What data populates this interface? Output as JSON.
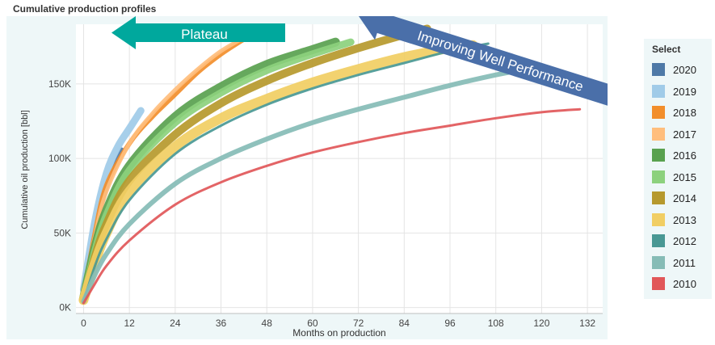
{
  "chart_data": {
    "type": "line",
    "title": "Cumulative production profiles",
    "xlabel": "Months on production",
    "ylabel": "Cumulative oil production [bbl]",
    "xlim": [
      -2,
      136
    ],
    "ylim": [
      -4,
      190
    ],
    "x_ticks": [
      0,
      12,
      24,
      36,
      48,
      60,
      72,
      84,
      96,
      108,
      120,
      132
    ],
    "x_tick_labels": [
      "0",
      "12",
      "24",
      "36",
      "48",
      "60",
      "72",
      "84",
      "96",
      "108",
      "120",
      "132"
    ],
    "y_ticks": [
      0,
      50,
      100,
      150
    ],
    "y_tick_labels": [
      "0K",
      "50K",
      "100K",
      "150K"
    ],
    "y_unit": "thousand bbl",
    "grid": true,
    "legend": {
      "title": "Select",
      "position": "right"
    },
    "series": [
      {
        "name": "2020",
        "color": "#4e79a7",
        "width": 5,
        "points": [
          [
            0,
            10
          ],
          [
            3,
            50
          ],
          [
            6,
            80
          ],
          [
            9,
            100
          ],
          [
            10,
            106
          ]
        ]
      },
      {
        "name": "2019",
        "color": "#a0cbe8",
        "width": 9,
        "points": [
          [
            0,
            12
          ],
          [
            3,
            58
          ],
          [
            6,
            90
          ],
          [
            9,
            108
          ],
          [
            12,
            120
          ],
          [
            15,
            132
          ]
        ]
      },
      {
        "name": "2018",
        "color": "#f28e2b",
        "width": 6,
        "points": [
          [
            0,
            8
          ],
          [
            3,
            50
          ],
          [
            6,
            82
          ],
          [
            12,
            110
          ],
          [
            18,
            128
          ],
          [
            24,
            143
          ],
          [
            30,
            158
          ],
          [
            36,
            170
          ],
          [
            42,
            180
          ],
          [
            45,
            184
          ]
        ]
      },
      {
        "name": "2017",
        "color": "#ffbe7d",
        "width": 5,
        "points": [
          [
            0,
            8
          ],
          [
            3,
            48
          ],
          [
            6,
            78
          ],
          [
            12,
            110
          ],
          [
            18,
            130
          ],
          [
            24,
            146
          ],
          [
            30,
            160
          ],
          [
            36,
            172
          ],
          [
            42,
            181
          ],
          [
            45,
            185
          ]
        ]
      },
      {
        "name": "2016",
        "color": "#59a14f",
        "width": 11,
        "points": [
          [
            0,
            6
          ],
          [
            3,
            40
          ],
          [
            6,
            65
          ],
          [
            12,
            95
          ],
          [
            24,
            128
          ],
          [
            36,
            148
          ],
          [
            48,
            163
          ],
          [
            60,
            173
          ],
          [
            66,
            178
          ]
        ]
      },
      {
        "name": "2015",
        "color": "#8cd17d",
        "width": 9,
        "points": [
          [
            0,
            6
          ],
          [
            3,
            38
          ],
          [
            6,
            62
          ],
          [
            12,
            92
          ],
          [
            24,
            124
          ],
          [
            36,
            144
          ],
          [
            48,
            159
          ],
          [
            60,
            170
          ],
          [
            70,
            178
          ]
        ]
      },
      {
        "name": "2014",
        "color": "#b6992d",
        "width": 10,
        "points": [
          [
            0,
            5
          ],
          [
            3,
            34
          ],
          [
            6,
            56
          ],
          [
            12,
            85
          ],
          [
            24,
            116
          ],
          [
            36,
            137
          ],
          [
            48,
            152
          ],
          [
            60,
            164
          ],
          [
            72,
            174
          ],
          [
            84,
            183
          ],
          [
            90,
            187
          ]
        ]
      },
      {
        "name": "2013",
        "color": "#f1ce63",
        "width": 12,
        "points": [
          [
            0,
            5
          ],
          [
            3,
            30
          ],
          [
            6,
            50
          ],
          [
            12,
            78
          ],
          [
            24,
            108
          ],
          [
            36,
            127
          ],
          [
            48,
            140
          ],
          [
            60,
            151
          ],
          [
            72,
            160
          ],
          [
            84,
            168
          ],
          [
            96,
            174
          ],
          [
            102,
            176
          ]
        ]
      },
      {
        "name": "2012",
        "color": "#499894",
        "width": 3,
        "points": [
          [
            0,
            4
          ],
          [
            3,
            28
          ],
          [
            6,
            46
          ],
          [
            12,
            72
          ],
          [
            24,
            103
          ],
          [
            36,
            122
          ],
          [
            48,
            136
          ],
          [
            60,
            147
          ],
          [
            72,
            156
          ],
          [
            84,
            164
          ],
          [
            96,
            172
          ],
          [
            106,
            177
          ]
        ]
      },
      {
        "name": "2011",
        "color": "#86bcb6",
        "width": 6,
        "points": [
          [
            0,
            4
          ],
          [
            3,
            22
          ],
          [
            6,
            36
          ],
          [
            12,
            56
          ],
          [
            24,
            83
          ],
          [
            36,
            100
          ],
          [
            48,
            113
          ],
          [
            60,
            124
          ],
          [
            72,
            133
          ],
          [
            84,
            141
          ],
          [
            96,
            149
          ],
          [
            108,
            156
          ],
          [
            116,
            160
          ]
        ]
      },
      {
        "name": "2010",
        "color": "#e15759",
        "width": 3,
        "points": [
          [
            0,
            3
          ],
          [
            3,
            16
          ],
          [
            6,
            28
          ],
          [
            12,
            45
          ],
          [
            24,
            69
          ],
          [
            36,
            84
          ],
          [
            48,
            95
          ],
          [
            60,
            104
          ],
          [
            72,
            111
          ],
          [
            84,
            117
          ],
          [
            96,
            122
          ],
          [
            108,
            127
          ],
          [
            120,
            131
          ],
          [
            130,
            133
          ]
        ]
      }
    ],
    "annotations": [
      {
        "text": "Plateau",
        "color": "#00a89d",
        "direction": "left"
      },
      {
        "text": "Improving Well Performance",
        "color": "#4a6fa9",
        "direction": "up-left"
      }
    ]
  }
}
